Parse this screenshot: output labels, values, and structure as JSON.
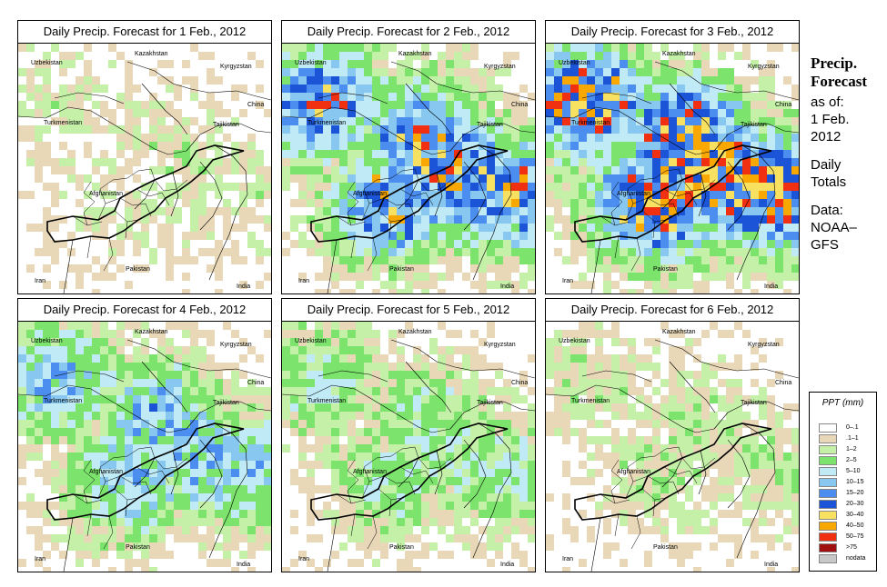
{
  "panels": [
    {
      "title": "Daily Precip. Forecast for  1 Feb., 2012",
      "intensity": 0.25
    },
    {
      "title": "Daily Precip. Forecast for  2 Feb., 2012",
      "intensity": 0.75
    },
    {
      "title": "Daily Precip. Forecast for  3 Feb., 2012",
      "intensity": 0.85
    },
    {
      "title": "Daily Precip. Forecast for  4 Feb., 2012",
      "intensity": 0.6
    },
    {
      "title": "Daily Precip. Forecast for  5 Feb., 2012",
      "intensity": 0.45
    },
    {
      "title": "Daily Precip. Forecast for  6 Feb., 2012",
      "intensity": 0.3
    }
  ],
  "countries": [
    "Kazakhstan",
    "Uzbekistan",
    "Kyrgyzstan",
    "China",
    "Turkmenistan",
    "Tajikistan",
    "Afghanistan",
    "Pakistan",
    "Iran",
    "India"
  ],
  "side": {
    "heading_line1": "Precip.",
    "heading_line2": "Forecast",
    "asof": "as of:",
    "date_line1": "1 Feb.",
    "date_line2": "2012",
    "totals_line1": "Daily",
    "totals_line2": "Totals",
    "data_line1": "Data:",
    "data_line2": "NOAA–",
    "data_line3": "GFS"
  },
  "legend": {
    "title": "PPT (mm)",
    "items": [
      {
        "label": "0–.1",
        "color": "#ffffff"
      },
      {
        "label": ".1–1",
        "color": "#e8d8b8"
      },
      {
        "label": "1–2",
        "color": "#c4f0a8"
      },
      {
        "label": "2–5",
        "color": "#7ce46c"
      },
      {
        "label": "5–10",
        "color": "#bfeaf6"
      },
      {
        "label": "10–15",
        "color": "#88c8f0"
      },
      {
        "label": "15–20",
        "color": "#4c8ef0"
      },
      {
        "label": "20–30",
        "color": "#1c54d8"
      },
      {
        "label": "30–40",
        "color": "#f8e060"
      },
      {
        "label": "40–50",
        "color": "#f8a800"
      },
      {
        "label": "50–75",
        "color": "#f03010"
      },
      {
        "label": ">75",
        "color": "#a01010"
      },
      {
        "label": "nodata",
        "color": "#c8c8c8"
      }
    ]
  }
}
